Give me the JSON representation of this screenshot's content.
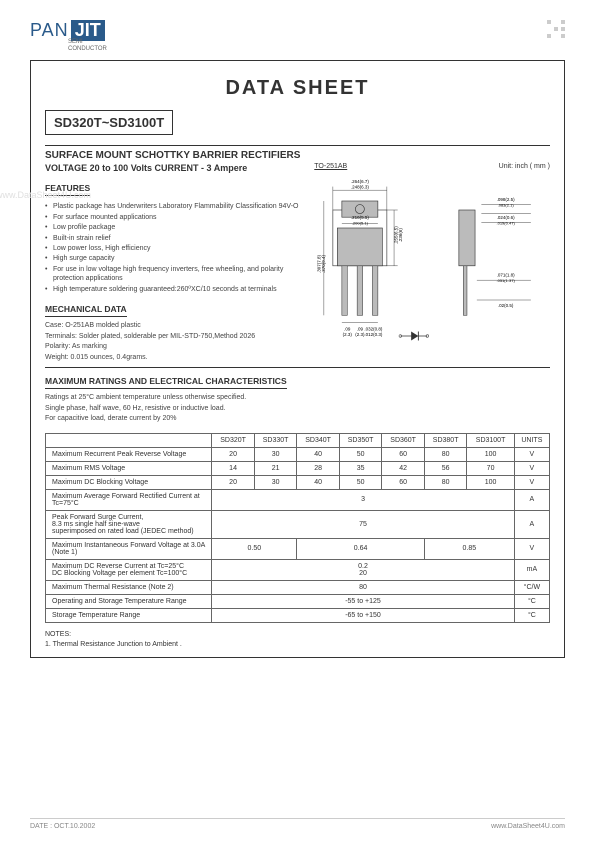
{
  "brand": {
    "pan": "PAN",
    "jit": "JIT",
    "sub1": "SEMI",
    "sub2": "CONDUCTOR"
  },
  "header": {
    "title": "DATA  SHEET",
    "part_range": "SD320T~SD3100T",
    "line1": "SURFACE MOUNT SCHOTTKY BARRIER RECTIFIERS",
    "line2": "VOLTAGE 20 to 100 Volts    CURRENT - 3 Ampere"
  },
  "package": {
    "label": "TO-251AB",
    "unit": "Unit: inch ( mm )"
  },
  "features": {
    "heading": "FEATURES",
    "items": [
      "Plastic package has Underwriters Laboratory Flammability Classification 94V-O",
      "For surface mounted applications",
      "Low profile package",
      "Built-in strain relief",
      "Low power loss, High efficiency",
      "High surge capacity",
      "For use in low voltage high frequency inverters, free wheeling, and polarity protection applications",
      "High temperature soldering guaranteed:260ºXC/10 seconds at terminals"
    ]
  },
  "mech": {
    "heading": "MECHANICAL DATA",
    "case": "Case: O-251AB molded plastic",
    "terminals": "Terminals: Solder plated, solderable per MIL-STD-750,Method 2026",
    "polarity": "Polarity:  As marking",
    "weight": "Weight: 0.015 ounces, 0.4grams."
  },
  "ratings": {
    "heading": "MAXIMUM RATINGS AND ELECTRICAL CHARACTERISTICS",
    "note1": "Ratings at 25°C ambient temperature unless otherwise specified.",
    "note2": "Single phase, half wave, 60 Hz, resistive or inductive load.",
    "note3": "For capacitive load, derate current by 20%"
  },
  "table": {
    "columns": [
      "",
      "SD320T",
      "SD330T",
      "SD340T",
      "SD350T",
      "SD360T",
      "SD380T",
      "SD3100T",
      "UNITS"
    ],
    "rows": [
      {
        "param": "Maximum Recurrent Peak Reverse Voltage",
        "cells": [
          "20",
          "30",
          "40",
          "50",
          "60",
          "80",
          "100"
        ],
        "unit": "V"
      },
      {
        "param": "Maximum RMS Voltage",
        "cells": [
          "14",
          "21",
          "28",
          "35",
          "42",
          "56",
          "70"
        ],
        "unit": "V"
      },
      {
        "param": "Maximum DC Blocking Voltage",
        "cells": [
          "20",
          "30",
          "40",
          "50",
          "60",
          "80",
          "100"
        ],
        "unit": "V"
      },
      {
        "param": "Maximum Average Forward Rectified Current at Tc=75°C",
        "span": "3",
        "unit": "A"
      },
      {
        "param": "Peak Forward Surge Current,\n8.3 ms single half sine-wave\nsuperimposed on rated load (JEDEC method)",
        "span": "75",
        "unit": "A"
      },
      {
        "param": "Maximum Instantaneous Forward Voltage at 3.0A (Note 1)",
        "groups": [
          {
            "v": "0.50",
            "span": 2
          },
          {
            "v": "0.64",
            "span": 3
          },
          {
            "v": "0.85",
            "span": 2
          }
        ],
        "unit": "V"
      },
      {
        "param": "Maximum DC Reverse Current at Tc=25°C\nDC Blocking Voltage per element  Tc=100°C",
        "span2": [
          "0.2",
          "20"
        ],
        "unit": "mA"
      },
      {
        "param": "Maximum Thermal Resistance (Note 2)",
        "span": "80",
        "unit": "°C/W"
      },
      {
        "param": "Operating and Storage Temperature Range",
        "span": "-55 to +125",
        "unit": "°C"
      },
      {
        "param": "Storage Temperature Range",
        "span": "-65 to +150",
        "unit": "°C"
      }
    ]
  },
  "notes": {
    "heading": "NOTES:",
    "n1": "1. Thermal Resistance Junction to Ambient ."
  },
  "footer": {
    "date": "DATE : OCT.10.2002",
    "site": "www.DataSheet4U.com"
  },
  "watermark": "www.DataSheet4U.com",
  "drawing": {
    "dims": {
      "w1a": ".264(6.7)",
      "w1b": ".248(6.3)",
      "w2a": ".216(5.5)",
      "w2b": ".200(5.1)",
      "h1a": ".098(2.5)",
      "h1b": ".083(2.1)",
      "h2a": ".024(0.6)",
      "h2b": ".019(0.47)",
      "l1a": ".307(7.8)",
      "l1b": ".370(9.4)",
      "l2a": ".255(6.5)",
      "l2b": ".236(6)",
      "p1a": ".032(0.8)",
      "p1b": ".012(0.3)",
      "p2a": ".09",
      "p2b": "(2.3)",
      "p3a": ".09",
      "p3b": "(2.3)",
      "t1a": ".071(1.8)",
      "t1b": ".051(1.37)",
      "t2": ".02(0.5)"
    }
  }
}
